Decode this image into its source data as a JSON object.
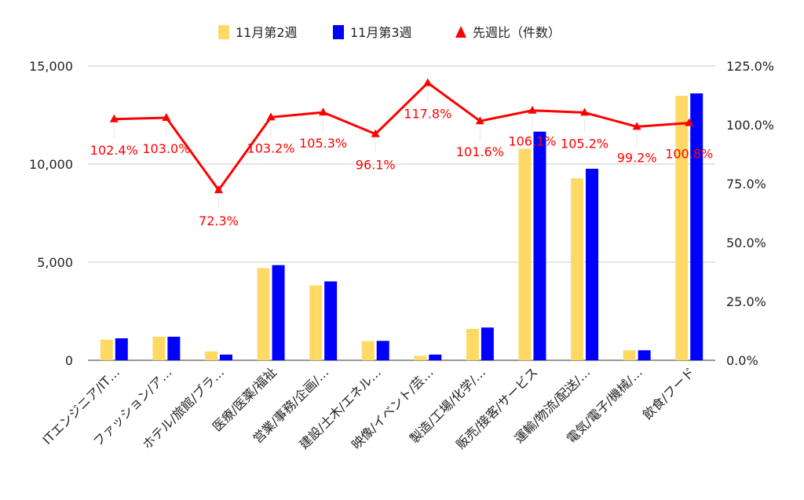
{
  "chart_data": {
    "type": "bar",
    "categories": [
      "ITエンジニア/IT…",
      "ファッション/ア…",
      "ホテル/旅館/ブラ…",
      "医療/医薬/福祉",
      "営業/事務/企画/…",
      "建設/土木/エネル…",
      "映像/イベント/芸…",
      "製造/工場/化学/…",
      "販売/接客/サービス",
      "運輸/物流/配送/…",
      "電気/電子/機械/…",
      "飲食/フード"
    ],
    "series": [
      {
        "name": "11月第2週",
        "type": "bar",
        "axis": "left",
        "color": "#FFD966",
        "values": [
          1050,
          1200,
          450,
          4700,
          3820,
          980,
          230,
          1600,
          10780,
          9270,
          510,
          13480
        ]
      },
      {
        "name": "11月第3週",
        "type": "bar",
        "axis": "left",
        "color": "#0000FF",
        "values": [
          1120,
          1200,
          290,
          4850,
          4020,
          990,
          290,
          1670,
          11650,
          9760,
          510,
          13600
        ]
      },
      {
        "name": "先週比（件数）",
        "type": "line",
        "axis": "right",
        "color": "#FF0000",
        "marker": "triangle",
        "values": [
          102.4,
          103.0,
          72.3,
          103.2,
          105.3,
          96.1,
          117.8,
          101.6,
          106.1,
          105.2,
          99.2,
          100.8
        ],
        "labels": [
          "102.4%",
          "103.0%",
          "72.3%",
          "103.2%",
          "105.3%",
          "96.1%",
          "117.8%",
          "101.6%",
          "106.1%",
          "105.2%",
          "99.2%",
          "100.8%"
        ]
      }
    ],
    "y_left": {
      "ticks": [
        0,
        5000,
        10000,
        15000
      ],
      "tick_labels": [
        "0",
        "5,000",
        "10,000",
        "15,000"
      ],
      "range": [
        0,
        15000
      ]
    },
    "y_right": {
      "ticks": [
        0,
        25,
        50,
        75,
        100,
        125
      ],
      "tick_labels": [
        "0.0%",
        "25.0%",
        "50.0%",
        "75.0%",
        "100.0%",
        "125.0%"
      ],
      "range": [
        0,
        125
      ]
    },
    "legend_position": "top",
    "grid": true,
    "title": "",
    "xlabel": "",
    "ylabel": ""
  }
}
